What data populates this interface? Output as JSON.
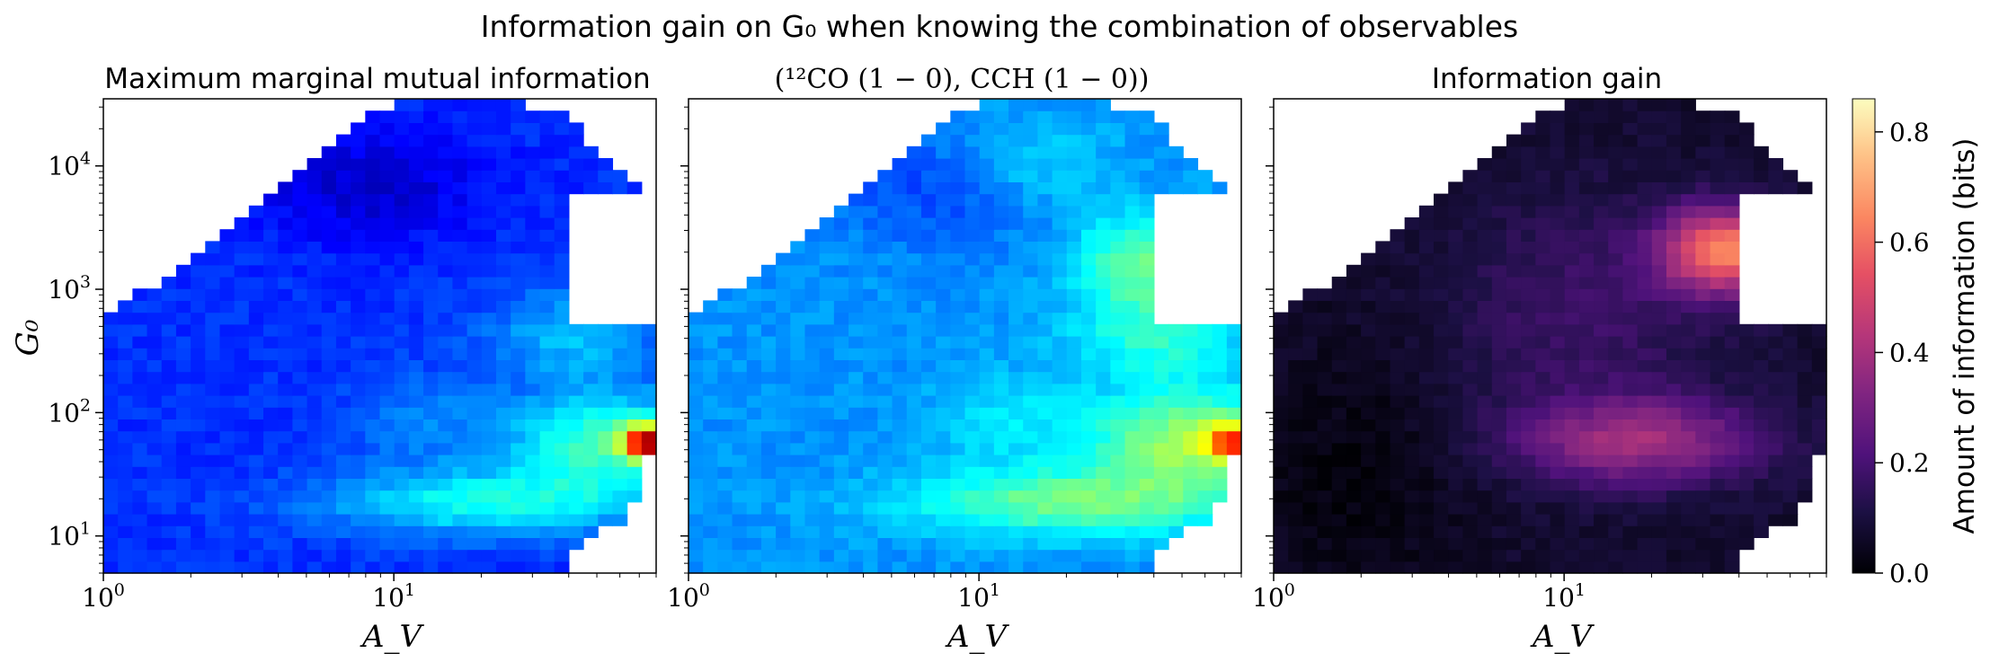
{
  "figure": {
    "suptitle": "Information gain on G₀ when knowing the combination of observables",
    "panels": [
      {
        "title": "Maximum marginal mutual information",
        "colormap": "jet"
      },
      {
        "title": "(¹²CO (1 − 0), CCH (1 − 0))",
        "colormap": "jet"
      },
      {
        "title": "Information gain",
        "colormap": "magma"
      }
    ],
    "xlabel": "A_V",
    "ylabel": "G₀",
    "x_ticks": [
      {
        "base": "10",
        "exp": "0"
      },
      {
        "base": "10",
        "exp": "1"
      }
    ],
    "y_ticks": [
      {
        "base": "10",
        "exp": "1"
      },
      {
        "base": "10",
        "exp": "2"
      },
      {
        "base": "10",
        "exp": "3"
      },
      {
        "base": "10",
        "exp": "4"
      }
    ],
    "colorbar": {
      "label": "Amount of information (bits)",
      "ticks": [
        "0.0",
        "0.2",
        "0.4",
        "0.6",
        "0.8"
      ]
    }
  },
  "chart_data": [
    {
      "type": "heatmap",
      "title": "Maximum marginal mutual information",
      "xlabel": "A_V",
      "ylabel": "G₀",
      "x_scale": "log",
      "y_scale": "log",
      "xlim": [
        1,
        80
      ],
      "ylim": [
        5,
        35000
      ],
      "colormap": "jet",
      "grid": false,
      "cells": "38x40 grid of values (approx. 0.05-0.6), masked outside the sampled region"
    },
    {
      "type": "heatmap",
      "title": "(¹²CO (1 − 0), CCH (1 − 0))",
      "xlabel": "A_V",
      "x_scale": "log",
      "y_scale": "log",
      "xlim": [
        1,
        80
      ],
      "ylim": [
        5,
        35000
      ],
      "colormap": "jet",
      "grid": false,
      "cells": "38x40 grid of values (approx. 0.1-0.7), masked outside the sampled region"
    },
    {
      "type": "heatmap",
      "title": "Information gain",
      "xlabel": "A_V",
      "x_scale": "log",
      "y_scale": "log",
      "xlim": [
        1,
        80
      ],
      "ylim": [
        5,
        35000
      ],
      "colormap": "magma",
      "color_range": [
        0.0,
        0.86
      ],
      "colorbar_ticks": [
        0.0,
        0.2,
        0.4,
        0.6,
        0.8
      ],
      "colorbar_label": "Amount of information (bits)",
      "grid": false,
      "cells": "38x40 grid of values (approx. 0.0-0.7), masked outside the sampled region"
    }
  ]
}
